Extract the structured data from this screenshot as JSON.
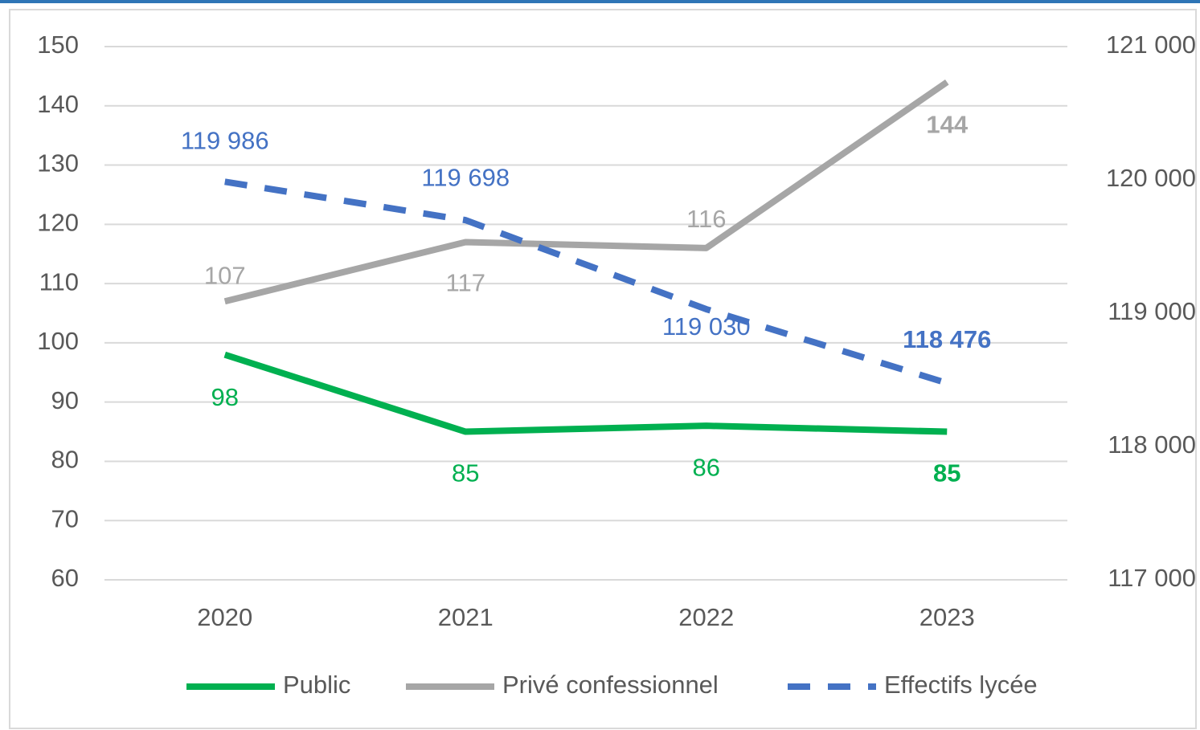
{
  "chart_data": {
    "type": "line",
    "categories": [
      "2020",
      "2021",
      "2022",
      "2023"
    ],
    "series": [
      {
        "name": "Public",
        "color": "#00b050",
        "values": [
          98,
          85,
          86,
          85
        ]
      },
      {
        "name": "Privé confessionnel",
        "color": "#a6a6a6",
        "values": [
          107,
          117,
          116,
          144
        ]
      },
      {
        "name": "Effectifs lycée",
        "color": "#4472c4",
        "dashed": true,
        "axis": "y2",
        "values": [
          119986,
          119698,
          119030,
          118476
        ],
        "value_labels": [
          "119 986",
          "119 698",
          "119 030",
          "118 476"
        ]
      }
    ],
    "ylim": [
      60,
      150
    ],
    "yticks": [
      60,
      70,
      80,
      90,
      100,
      110,
      120,
      130,
      140,
      150
    ],
    "y2lim": [
      117000,
      121000
    ],
    "y2ticks": [
      {
        "value": 117000,
        "label": "117 000"
      },
      {
        "value": 118000,
        "label": "118 000"
      },
      {
        "value": 119000,
        "label": "119 000"
      },
      {
        "value": 120000,
        "label": "120 000"
      },
      {
        "value": 121000,
        "label": "121 000"
      }
    ],
    "grid": true,
    "legend": "bottom"
  }
}
